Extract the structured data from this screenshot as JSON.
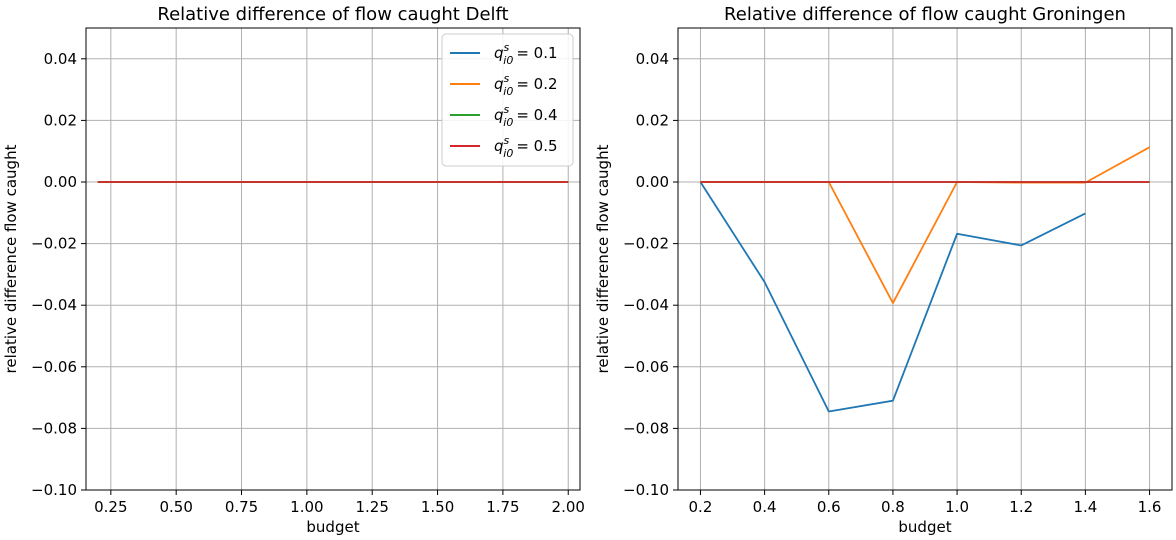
{
  "colors": {
    "qi0_0_1": "#1f77b4",
    "qi0_0_2": "#ff7f0e",
    "qi0_0_4": "#2ca02c",
    "qi0_0_5": "#d62728",
    "grid": "#b0b0b0",
    "axes": "#000000"
  },
  "chart_data": [
    {
      "type": "line",
      "title": "Relative difference of flow caught Delft",
      "xlabel": "budget",
      "ylabel": "relative difference flow caught",
      "xlim": [
        0.155,
        2.045
      ],
      "ylim": [
        -0.1,
        0.05
      ],
      "xticks": [
        0.25,
        0.5,
        0.75,
        1.0,
        1.25,
        1.5,
        1.75,
        2.0
      ],
      "xtick_labels": [
        "0.25",
        "0.50",
        "0.75",
        "1.00",
        "1.25",
        "1.50",
        "1.75",
        "2.00"
      ],
      "yticks": [
        0.04,
        0.02,
        0.0,
        -0.02,
        -0.04,
        -0.06,
        -0.08,
        -0.1
      ],
      "ytick_labels": [
        "0.04",
        "0.02",
        "0.00",
        "−0.02",
        "−0.04",
        "−0.06",
        "−0.08",
        "−0.10"
      ],
      "grid": true,
      "legend": "top-right",
      "series": [
        {
          "name": "q^s_{i0} = 0.1",
          "label_base": "q",
          "label_sup": "s",
          "label_sub": "i0",
          "label_value": "= 0.1",
          "color_key": "qi0_0_1",
          "x": [
            0.2,
            2.0
          ],
          "y": [
            0.0,
            0.0
          ]
        },
        {
          "name": "q^s_{i0} = 0.2",
          "label_base": "q",
          "label_sup": "s",
          "label_sub": "i0",
          "label_value": "= 0.2",
          "color_key": "qi0_0_2",
          "x": [
            0.2,
            2.0
          ],
          "y": [
            0.0,
            0.0
          ]
        },
        {
          "name": "q^s_{i0} = 0.4",
          "label_base": "q",
          "label_sup": "s",
          "label_sub": "i0",
          "label_value": "= 0.4",
          "color_key": "qi0_0_4",
          "x": [
            0.2,
            2.0
          ],
          "y": [
            0.0,
            0.0
          ]
        },
        {
          "name": "q^s_{i0} = 0.5",
          "label_base": "q",
          "label_sup": "s",
          "label_sub": "i0",
          "label_value": "= 0.5",
          "color_key": "qi0_0_5",
          "x": [
            0.2,
            2.0
          ],
          "y": [
            0.0,
            0.0
          ]
        }
      ]
    },
    {
      "type": "line",
      "title": "Relative difference of flow caught Groningen",
      "xlabel": "budget",
      "ylabel": "relative difference flow caught",
      "xlim": [
        0.13,
        1.67
      ],
      "ylim": [
        -0.1,
        0.05
      ],
      "xticks": [
        0.2,
        0.4,
        0.6,
        0.8,
        1.0,
        1.2,
        1.4,
        1.6
      ],
      "xtick_labels": [
        "0.2",
        "0.4",
        "0.6",
        "0.8",
        "1.0",
        "1.2",
        "1.4",
        "1.6"
      ],
      "yticks": [
        0.04,
        0.02,
        0.0,
        -0.02,
        -0.04,
        -0.06,
        -0.08,
        -0.1
      ],
      "ytick_labels": [
        "0.04",
        "0.02",
        "0.00",
        "−0.02",
        "−0.04",
        "−0.06",
        "−0.08",
        "−0.10"
      ],
      "grid": true,
      "series": [
        {
          "color_key": "qi0_0_1",
          "x": [
            0.2,
            0.4,
            0.6,
            0.8,
            1.0,
            1.2,
            1.4
          ],
          "y": [
            0.0,
            -0.0325,
            -0.0745,
            -0.071,
            -0.0168,
            -0.0206,
            -0.0102
          ]
        },
        {
          "color_key": "qi0_0_2",
          "x": [
            0.2,
            0.4,
            0.6,
            0.8,
            1.0,
            1.2,
            1.4,
            1.6
          ],
          "y": [
            0.0,
            0.0,
            0.0,
            -0.0393,
            0.0,
            -0.0002,
            -0.0002,
            0.0113
          ]
        },
        {
          "color_key": "qi0_0_4",
          "x": [
            0.2,
            0.4,
            0.6,
            0.8,
            1.0,
            1.2,
            1.4,
            1.6
          ],
          "y": [
            0.0,
            0.0,
            0.0,
            0.0,
            0.0,
            0.0,
            0.0,
            0.0
          ]
        },
        {
          "color_key": "qi0_0_5",
          "x": [
            0.2,
            0.4,
            0.6,
            0.8,
            1.0,
            1.2,
            1.4,
            1.6
          ],
          "y": [
            0.0,
            0.0,
            0.0,
            0.0,
            0.0,
            0.0,
            0.0,
            0.0
          ]
        }
      ]
    }
  ]
}
